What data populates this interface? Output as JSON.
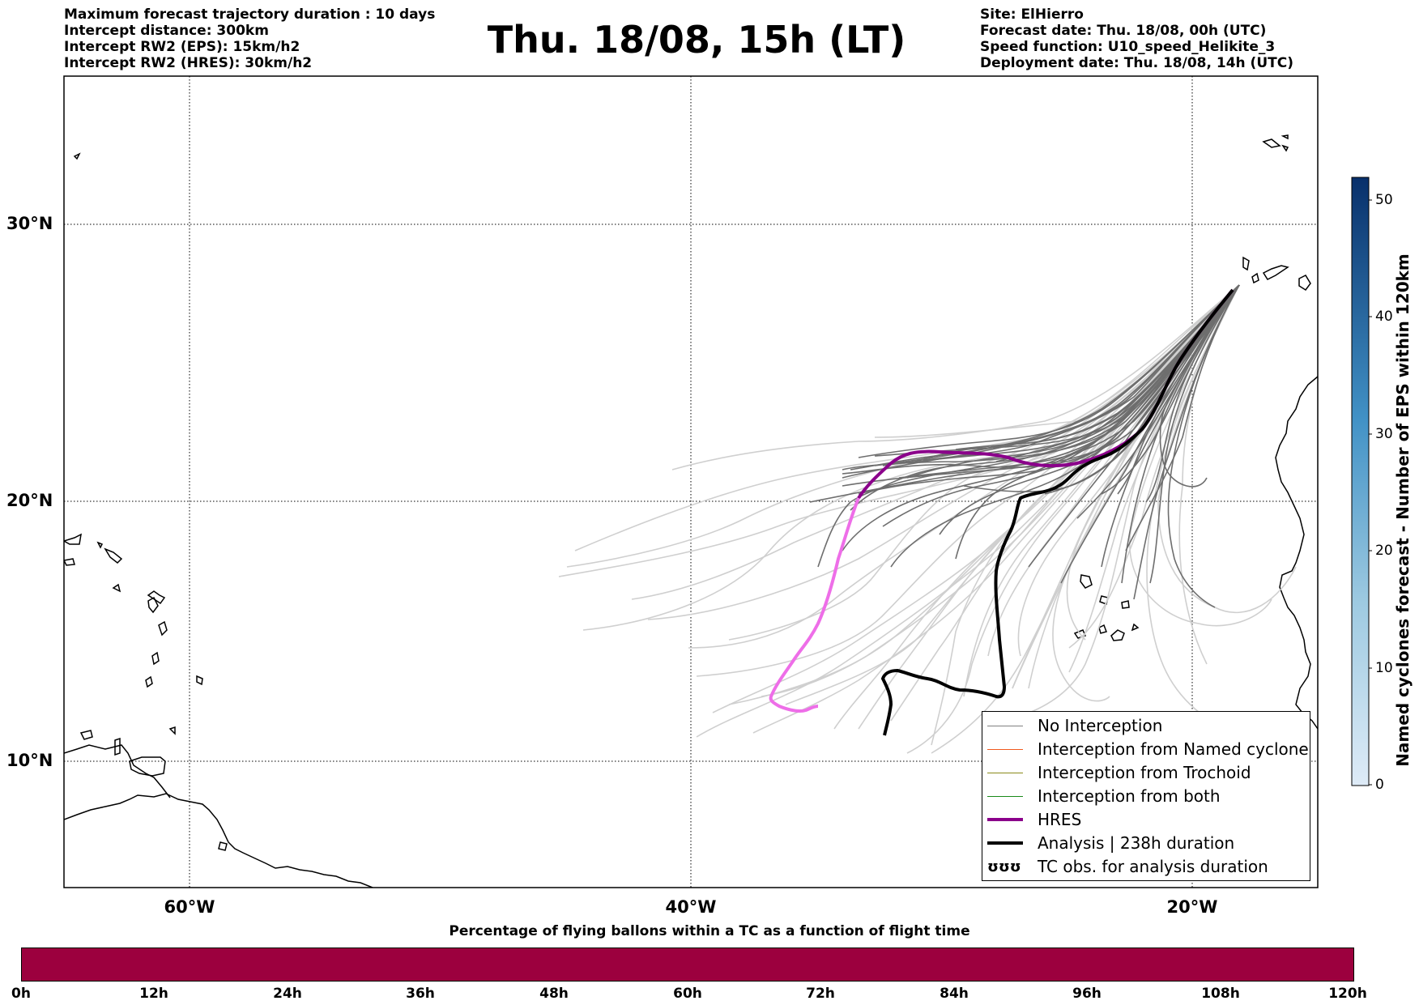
{
  "header_left": [
    "Maximum forecast trajectory duration : 10 days",
    "Intercept distance: 300km",
    "Intercept RW2 (EPS):  15km/h2",
    "Intercept RW2 (HRES): 30km/h2"
  ],
  "title": "Thu. 18/08, 15h (LT)",
  "header_right": [
    "Site: ElHierro",
    "Forecast date: Thu. 18/08, 00h (UTC)",
    "Speed function: U10_speed_Helikite_3",
    "Deployment date: Thu. 18/08, 14h (UTC)"
  ],
  "map": {
    "lon_range": [
      -65,
      15
    ],
    "lat_range": [
      5,
      35
    ],
    "lat_labels": [
      "30°N",
      "20°N",
      "10°N"
    ],
    "lon_labels": [
      "60°W",
      "40°W",
      "20°W"
    ],
    "hres_color": "#8b008b",
    "hres_tail_color": "#ee6ee8",
    "analysis_color": "#000000",
    "eps_dark_color": "#707070",
    "eps_light_color": "#cccccc"
  },
  "legend": {
    "items": [
      {
        "label": "No Interception",
        "color": "#808080",
        "width": 1.5
      },
      {
        "label": "Interception from Named cyclone",
        "color": "#f05a1e",
        "width": 1.5
      },
      {
        "label": "Interception from Trochoid",
        "color": "#8a8a1a",
        "width": 1.5
      },
      {
        "label": "Interception from both",
        "color": "#1a8a1a",
        "width": 1.5
      },
      {
        "label": "HRES",
        "color": "#8b008b",
        "width": 4
      },
      {
        "label": "Analysis | 238h duration",
        "color": "#000000",
        "width": 4
      }
    ],
    "tc_symbol": "ʊʊʊ",
    "tc_label": "TC obs. for analysis duration"
  },
  "colorbar": {
    "label": "Named cyclones forecast - Number of EPS within 120km",
    "ticks": [
      "0",
      "10",
      "20",
      "30",
      "40",
      "50"
    ],
    "top_color": "#08306b",
    "bottom_color": "#deebf7"
  },
  "bottom_bar": {
    "title": "Percentage of flying ballons within a TC as a function of flight time",
    "color": "#9c003e",
    "ticks": [
      "0h",
      "12h",
      "24h",
      "36h",
      "48h",
      "60h",
      "72h",
      "84h",
      "96h",
      "108h",
      "120h"
    ]
  }
}
